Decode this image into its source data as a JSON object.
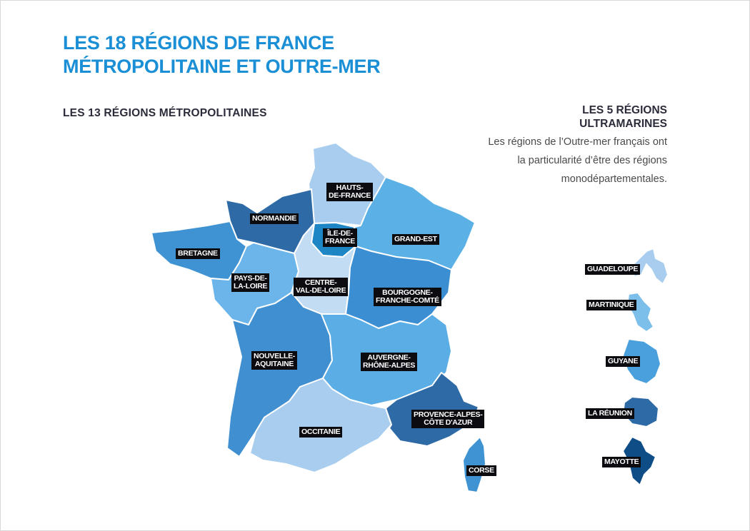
{
  "title": {
    "line1": "LES 18 RÉGIONS DE FRANCE",
    "line2": "MÉTROPOLITAINE ET OUTRE-MER"
  },
  "metropole": {
    "heading": "LES 13 RÉGIONS MÉTROPOLITAINES",
    "regions": [
      {
        "id": "hauts-de-france",
        "label_line1": "HAUTS-",
        "label_line2": "DE-FRANCE",
        "color": "#a9cdee"
      },
      {
        "id": "normandie",
        "label_line1": "NORMANDIE",
        "label_line2": "",
        "color": "#2e6aa6"
      },
      {
        "id": "ile-de-france",
        "label_line1": "ÎLE-DE-",
        "label_line2": "FRANCE",
        "color": "#1e86c4"
      },
      {
        "id": "grand-est",
        "label_line1": "GRAND-EST",
        "label_line2": "",
        "color": "#5bb1e6"
      },
      {
        "id": "bretagne",
        "label_line1": "BRETAGNE",
        "label_line2": "",
        "color": "#3f93d3"
      },
      {
        "id": "pays-de-la-loire",
        "label_line1": "PAYS-DE-",
        "label_line2": "LA-LOIRE",
        "color": "#6bb5ea"
      },
      {
        "id": "centre-val-de-loire",
        "label_line1": "CENTRE-",
        "label_line2": "VAL-DE-LOIRE",
        "color": "#c1dcf3"
      },
      {
        "id": "bourgogne-franche-comte",
        "label_line1": "BOURGOGNE-",
        "label_line2": "FRANCHE-COMTÉ",
        "color": "#3c8ed2"
      },
      {
        "id": "nouvelle-aquitaine",
        "label_line1": "NOUVELLE-",
        "label_line2": "AQUITAINE",
        "color": "#3f8fd1"
      },
      {
        "id": "auvergne-rhone-alpes",
        "label_line1": "AUVERGNE-",
        "label_line2": "RHÔNE-ALPES",
        "color": "#5aade5"
      },
      {
        "id": "occitanie",
        "label_line1": "OCCITANIE",
        "label_line2": "",
        "color": "#a9cdee"
      },
      {
        "id": "provence-alpes-cote-d-azur",
        "label_line1": "PROVENCE-ALPES-",
        "label_line2": "CÔTE D'AZUR",
        "color": "#2e6aa6"
      },
      {
        "id": "corse",
        "label_line1": "CORSE",
        "label_line2": "",
        "color": "#3f93d3"
      }
    ]
  },
  "outre_mer": {
    "heading_line1": "LES 5 RÉGIONS",
    "heading_line2": "ULTRAMARINES",
    "description": "Les régions de l’Outre-mer français ont la particularité d’être des régions monodépartementales.",
    "regions": [
      {
        "id": "guadeloupe",
        "label": "GUADELOUPE",
        "color": "#a9cdee"
      },
      {
        "id": "martinique",
        "label": "MARTINIQUE",
        "color": "#7cbfea"
      },
      {
        "id": "guyane",
        "label": "GUYANE",
        "color": "#4aa0dc"
      },
      {
        "id": "la-reunion",
        "label": "LA RÉUNION",
        "color": "#2e6aa6"
      },
      {
        "id": "mayotte",
        "label": "MAYOTTE",
        "color": "#0f4d86"
      }
    ]
  }
}
